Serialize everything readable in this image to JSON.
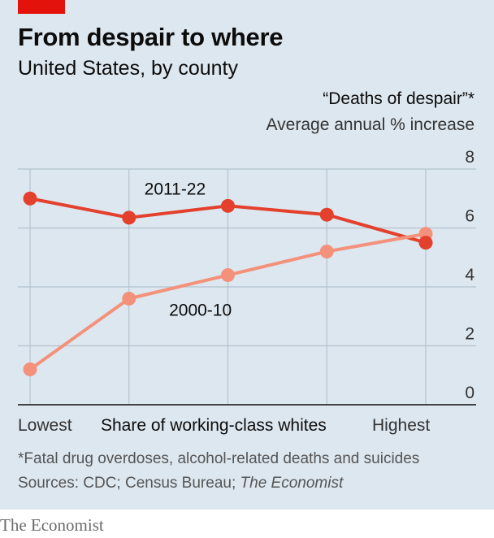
{
  "header": {
    "title": "From despair to where",
    "subtitle": "United States, by county",
    "unit_line1": "“Deaths of despair”*",
    "unit_line2": "Average annual % increase"
  },
  "axis": {
    "x_left": "Lowest",
    "x_title": "Share of working-class whites",
    "x_right": "Highest"
  },
  "footer": {
    "footnote": "*Fatal drug overdoses, alcohol-related deaths and suicides",
    "sources_prefix": "Sources: CDC; Census Bureau; ",
    "sources_italic": "The Economist",
    "brand": "The Economist"
  },
  "chart_data": {
    "type": "line",
    "title": "From despair to where",
    "subtitle": "United States, by county",
    "ylabel": "Average annual % increase",
    "xlabel": "Share of working-class whites",
    "x": [
      1,
      2,
      3,
      4,
      5
    ],
    "ylim": [
      0,
      8
    ],
    "yticks": [
      0,
      2,
      4,
      6,
      8
    ],
    "grid": true,
    "series": [
      {
        "name": "2011-22",
        "color": "#e3402d",
        "values": [
          7.0,
          6.35,
          6.75,
          6.45,
          5.5
        ]
      },
      {
        "name": "2000-10",
        "color": "#f4917a",
        "values": [
          1.2,
          3.6,
          4.4,
          5.2,
          5.8
        ]
      }
    ]
  }
}
